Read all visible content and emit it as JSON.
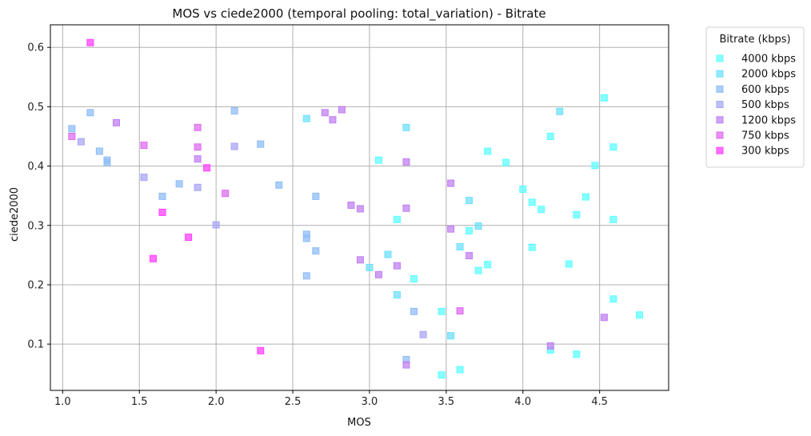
{
  "chart_data": {
    "type": "scatter",
    "title": "MOS vs ciede2000 (temporal pooling: total_variation) - Bitrate",
    "xlabel": "MOS",
    "ylabel": "ciede2000",
    "xlim": [
      0.92,
      4.95
    ],
    "ylim": [
      0.022,
      0.638
    ],
    "xticks": [
      "1.0",
      "1.5",
      "2.0",
      "2.5",
      "3.0",
      "3.5",
      "4.0",
      "4.5"
    ],
    "yticks": [
      "0.1",
      "0.2",
      "0.3",
      "0.4",
      "0.5",
      "0.6"
    ],
    "grid": true,
    "marker": "square",
    "legend": {
      "title": "Bitrate (kbps)",
      "placement": "outside-top-right"
    },
    "series": [
      {
        "name": "4000 kbps",
        "color": "#5fffff",
        "points": [
          [
            4.53,
            0.515
          ],
          [
            4.59,
            0.432
          ],
          [
            4.47,
            0.401
          ],
          [
            4.41,
            0.348
          ],
          [
            4.35,
            0.318
          ],
          [
            4.59,
            0.31
          ],
          [
            4.3,
            0.235
          ],
          [
            4.59,
            0.176
          ],
          [
            4.76,
            0.149
          ],
          [
            4.35,
            0.083
          ],
          [
            4.18,
            0.45
          ],
          [
            3.89,
            0.406
          ],
          [
            4.0,
            0.361
          ],
          [
            4.06,
            0.339
          ],
          [
            4.12,
            0.327
          ],
          [
            4.06,
            0.263
          ],
          [
            4.18,
            0.09
          ],
          [
            3.77,
            0.425
          ],
          [
            3.65,
            0.291
          ],
          [
            3.71,
            0.224
          ],
          [
            3.77,
            0.234
          ],
          [
            3.06,
            0.41
          ],
          [
            3.18,
            0.31
          ],
          [
            3.29,
            0.21
          ],
          [
            3.47,
            0.155
          ],
          [
            3.47,
            0.048
          ],
          [
            3.59,
            0.057
          ]
        ]
      },
      {
        "name": "2000 kbps",
        "color": "#6fe0fa",
        "points": [
          [
            4.24,
            0.492
          ],
          [
            3.65,
            0.342
          ],
          [
            3.71,
            0.299
          ],
          [
            3.59,
            0.264
          ],
          [
            3.53,
            0.114
          ],
          [
            3.24,
            0.465
          ],
          [
            3.12,
            0.251
          ],
          [
            3.0,
            0.229
          ],
          [
            3.18,
            0.183
          ],
          [
            2.59,
            0.48
          ]
        ]
      },
      {
        "name": "600 kbps",
        "color": "#8fbdf7",
        "points": [
          [
            1.06,
            0.463
          ],
          [
            1.18,
            0.49
          ],
          [
            1.24,
            0.425
          ],
          [
            1.29,
            0.41
          ],
          [
            1.29,
            0.406
          ],
          [
            1.65,
            0.349
          ],
          [
            1.76,
            0.37
          ],
          [
            2.12,
            0.493
          ],
          [
            2.29,
            0.437
          ],
          [
            2.41,
            0.368
          ],
          [
            2.59,
            0.285
          ],
          [
            2.59,
            0.278
          ],
          [
            2.59,
            0.215
          ],
          [
            2.65,
            0.349
          ],
          [
            2.65,
            0.257
          ],
          [
            3.24,
            0.074
          ],
          [
            3.29,
            0.155
          ]
        ]
      },
      {
        "name": "500 kbps",
        "color": "#a9a6f5",
        "points": [
          [
            1.12,
            0.441
          ],
          [
            1.53,
            0.381
          ],
          [
            1.88,
            0.364
          ],
          [
            2.0,
            0.301
          ],
          [
            2.12,
            0.433
          ],
          [
            3.35,
            0.116
          ]
        ]
      },
      {
        "name": "1200 kbps",
        "color": "#c080f2",
        "points": [
          [
            1.35,
            0.473
          ],
          [
            1.88,
            0.412
          ],
          [
            2.71,
            0.49
          ],
          [
            2.76,
            0.478
          ],
          [
            2.82,
            0.495
          ],
          [
            2.88,
            0.334
          ],
          [
            2.94,
            0.328
          ],
          [
            2.94,
            0.242
          ],
          [
            3.06,
            0.217
          ],
          [
            3.18,
            0.232
          ],
          [
            3.24,
            0.407
          ],
          [
            3.24,
            0.329
          ],
          [
            3.24,
            0.065
          ],
          [
            3.53,
            0.371
          ],
          [
            3.53,
            0.294
          ],
          [
            3.65,
            0.249
          ],
          [
            4.18,
            0.097
          ],
          [
            4.53,
            0.145
          ]
        ]
      },
      {
        "name": "750 kbps",
        "color": "#df6cf0",
        "points": [
          [
            1.06,
            0.45
          ],
          [
            1.53,
            0.435
          ],
          [
            1.88,
            0.465
          ],
          [
            1.88,
            0.432
          ],
          [
            2.06,
            0.354
          ],
          [
            3.59,
            0.156
          ]
        ]
      },
      {
        "name": "300 kbps",
        "color": "#ff40ff",
        "points": [
          [
            1.18,
            0.608
          ],
          [
            1.59,
            0.244
          ],
          [
            1.65,
            0.322
          ],
          [
            1.82,
            0.28
          ],
          [
            1.94,
            0.397
          ],
          [
            2.29,
            0.089
          ]
        ]
      }
    ]
  }
}
